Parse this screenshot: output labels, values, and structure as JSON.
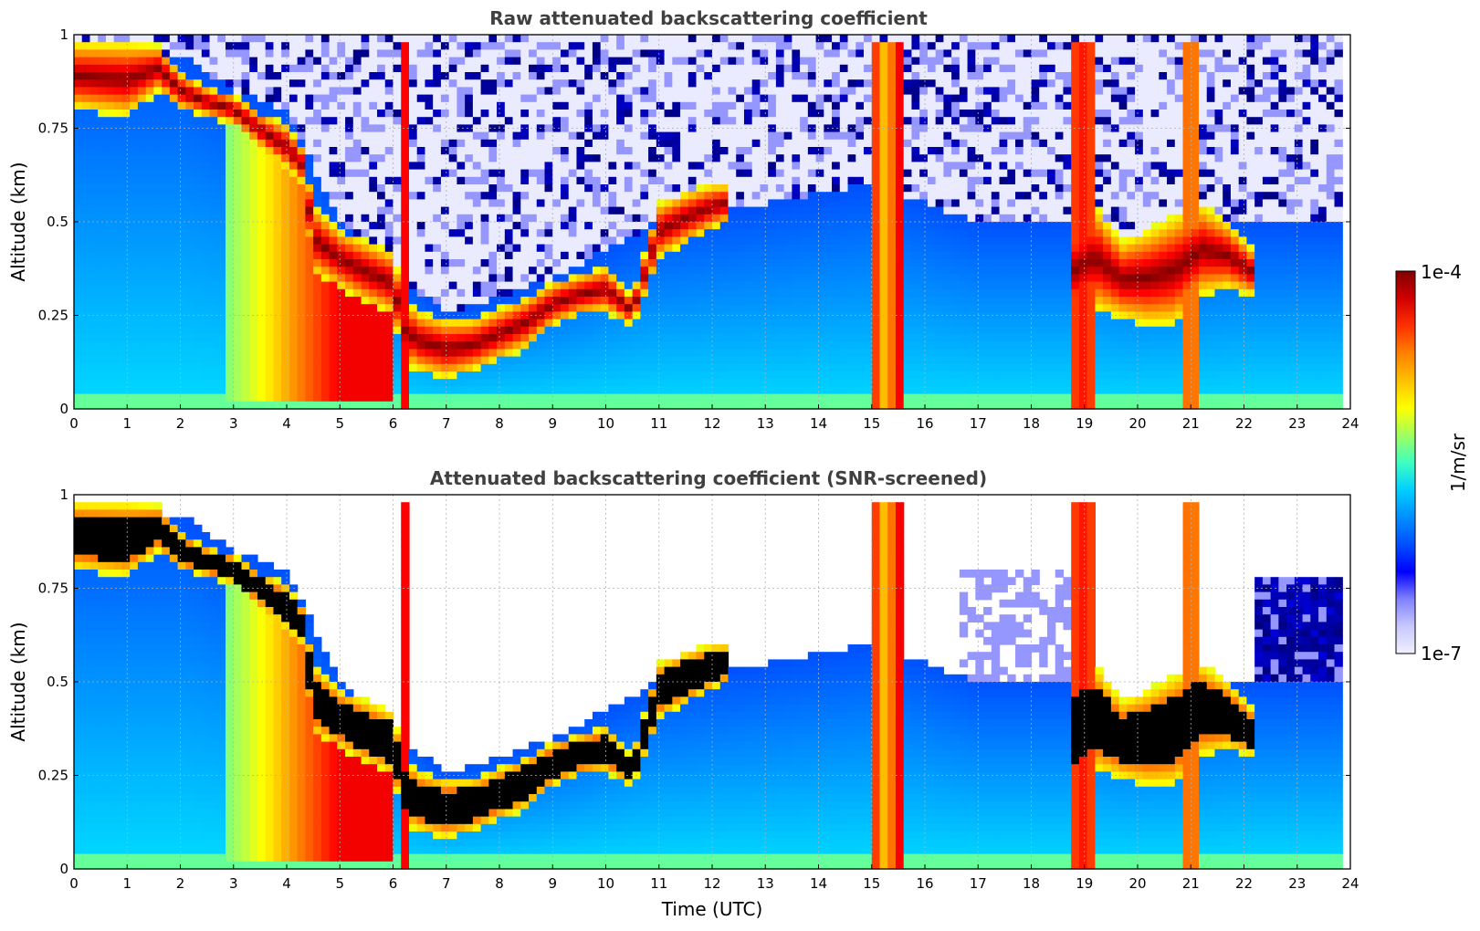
{
  "chart_data": [
    {
      "type": "heatmap",
      "title": "Raw attenuated backscattering coefficient",
      "xlabel": "",
      "ylabel": "Altitude (km)",
      "xlim": [
        0,
        24
      ],
      "ylim": [
        0,
        1
      ],
      "xticks": [
        0,
        1,
        2,
        3,
        4,
        5,
        6,
        7,
        8,
        9,
        10,
        11,
        12,
        13,
        14,
        15,
        16,
        17,
        18,
        19,
        20,
        21,
        22,
        23,
        24
      ],
      "yticks": [
        0,
        0.25,
        0.5,
        0.75,
        1
      ],
      "ytick_labels": [
        "0",
        "0.25",
        "0.5",
        "0.75",
        "1"
      ],
      "grid": true,
      "scale": "log",
      "color_range": [
        "1e-7",
        "1e-4"
      ],
      "colormap": "jet",
      "features": {
        "cloud_top_altitude_km": [
          [
            0,
            0.98
          ],
          [
            1,
            0.98
          ],
          [
            1.6,
            0.97
          ],
          [
            2,
            0.9
          ],
          [
            2.5,
            0.86
          ],
          [
            3,
            0.84
          ],
          [
            3.5,
            0.79
          ],
          [
            4,
            0.76
          ],
          [
            4.3,
            0.7
          ],
          [
            4.5,
            0.55
          ],
          [
            5,
            0.48
          ],
          [
            5.5,
            0.45
          ],
          [
            6,
            0.42
          ],
          [
            6.2,
            0.3
          ],
          [
            6.5,
            0.26
          ],
          [
            7,
            0.24
          ],
          [
            7.5,
            0.24
          ],
          [
            8,
            0.27
          ],
          [
            8.5,
            0.3
          ],
          [
            9,
            0.34
          ],
          [
            9.5,
            0.36
          ],
          [
            10,
            0.38
          ],
          [
            10.5,
            0.3
          ],
          [
            11,
            0.55
          ],
          [
            11.5,
            0.58
          ],
          [
            12,
            0.6
          ],
          [
            12.3,
            0.6
          ],
          [
            18.7,
            0.5
          ],
          [
            19.2,
            0.55
          ],
          [
            19.7,
            0.45
          ],
          [
            20.2,
            0.48
          ],
          [
            20.7,
            0.52
          ],
          [
            21.2,
            0.55
          ],
          [
            21.7,
            0.5
          ],
          [
            22.2,
            0.42
          ]
        ],
        "cloud_base_altitude_km": [
          [
            0,
            0.8
          ],
          [
            1,
            0.78
          ],
          [
            1.6,
            0.85
          ],
          [
            2,
            0.8
          ],
          [
            2.5,
            0.78
          ],
          [
            3,
            0.76
          ],
          [
            3.5,
            0.7
          ],
          [
            4,
            0.64
          ],
          [
            4.3,
            0.6
          ],
          [
            4.5,
            0.36
          ],
          [
            5,
            0.32
          ],
          [
            5.5,
            0.28
          ],
          [
            6,
            0.25
          ],
          [
            6.2,
            0.12
          ],
          [
            6.5,
            0.1
          ],
          [
            7,
            0.08
          ],
          [
            7.5,
            0.1
          ],
          [
            8,
            0.13
          ],
          [
            8.5,
            0.16
          ],
          [
            9,
            0.22
          ],
          [
            9.5,
            0.25
          ],
          [
            10,
            0.26
          ],
          [
            10.5,
            0.22
          ],
          [
            11,
            0.4
          ],
          [
            11.5,
            0.44
          ],
          [
            12,
            0.48
          ],
          [
            12.3,
            0.5
          ],
          [
            18.7,
            0.22
          ],
          [
            19.2,
            0.26
          ],
          [
            19.7,
            0.24
          ],
          [
            20.2,
            0.22
          ],
          [
            20.7,
            0.22
          ],
          [
            21.2,
            0.3
          ],
          [
            21.7,
            0.32
          ],
          [
            22.2,
            0.3
          ]
        ],
        "aerosol_top_altitude_km": [
          [
            0,
            0.95
          ],
          [
            2,
            0.95
          ],
          [
            3,
            0.85
          ],
          [
            4,
            0.8
          ],
          [
            5,
            0.5
          ],
          [
            7,
            0.25
          ],
          [
            9,
            0.35
          ],
          [
            11,
            0.5
          ],
          [
            13,
            0.55
          ],
          [
            15,
            0.6
          ],
          [
            17,
            0.5
          ],
          [
            18,
            0.5
          ],
          [
            19,
            0.5
          ],
          [
            20,
            0.45
          ],
          [
            22,
            0.5
          ],
          [
            23.8,
            0.5
          ]
        ]
      }
    },
    {
      "type": "heatmap",
      "title": "Attenuated backscattering coefficient (SNR-screened)",
      "xlabel": "Time (UTC)",
      "ylabel": "Altitude (km)",
      "xlim": [
        0,
        24
      ],
      "ylim": [
        0,
        1
      ],
      "xticks": [
        0,
        1,
        2,
        3,
        4,
        5,
        6,
        7,
        8,
        9,
        10,
        11,
        12,
        13,
        14,
        15,
        16,
        17,
        18,
        19,
        20,
        21,
        22,
        23,
        24
      ],
      "yticks": [
        0,
        0.25,
        0.5,
        0.75,
        1
      ],
      "ytick_labels": [
        "0",
        "0.25",
        "0.5",
        "0.75",
        "1"
      ],
      "grid": true,
      "scale": "log",
      "color_range": [
        "1e-7",
        "1e-4"
      ],
      "colormap": "jet",
      "saturated_color": "#000000"
    }
  ],
  "colorbar": {
    "label": "1/m/sr",
    "top_label": "1e-4",
    "bottom_label": "1e-7",
    "colors": [
      "#f0f0ff",
      "#c8c8ff",
      "#8080ff",
      "#0000ff",
      "#0050ff",
      "#0090ff",
      "#00d0ff",
      "#40ffc0",
      "#a0ff60",
      "#ffff00",
      "#ffc000",
      "#ff8000",
      "#ff3000",
      "#d00000",
      "#800000"
    ]
  }
}
